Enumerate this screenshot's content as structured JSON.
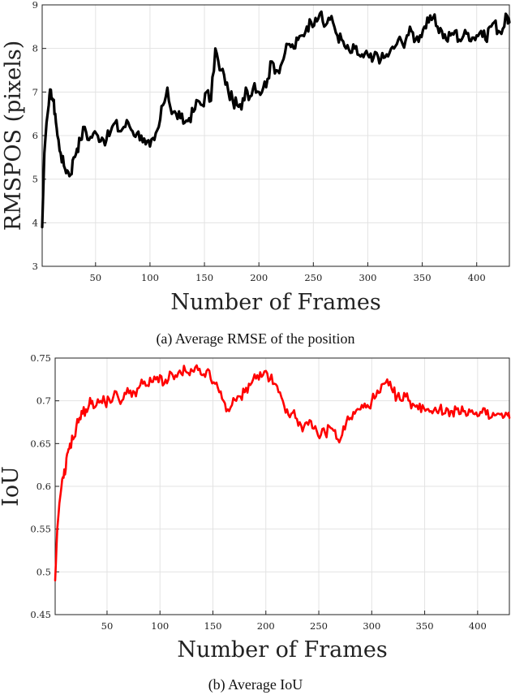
{
  "chart_data": [
    {
      "type": "line",
      "caption": "(a)  Average RMSE of the position",
      "xlabel": "Number of Frames",
      "ylabel": "RMSPOS (pixels)",
      "xlim": [
        1,
        430
      ],
      "ylim": [
        3,
        9
      ],
      "xticks": [
        50,
        100,
        150,
        200,
        250,
        300,
        350,
        400
      ],
      "yticks": [
        3,
        4,
        5,
        6,
        7,
        8,
        9
      ],
      "grid": true,
      "series": [
        {
          "color": "#000000",
          "x": [
            1,
            3,
            5,
            7,
            9,
            11,
            13,
            15,
            18,
            21,
            24,
            27,
            30,
            33,
            36,
            40,
            44,
            48,
            52,
            56,
            60,
            64,
            68,
            72,
            76,
            80,
            84,
            88,
            92,
            96,
            100,
            104,
            108,
            112,
            116,
            120,
            124,
            128,
            132,
            136,
            140,
            144,
            148,
            152,
            156,
            160,
            164,
            168,
            172,
            176,
            180,
            184,
            188,
            192,
            196,
            200,
            204,
            208,
            212,
            216,
            220,
            224,
            228,
            232,
            236,
            240,
            244,
            248,
            252,
            256,
            260,
            264,
            268,
            272,
            276,
            280,
            284,
            288,
            292,
            296,
            300,
            304,
            308,
            312,
            316,
            320,
            324,
            328,
            332,
            336,
            340,
            344,
            348,
            352,
            356,
            360,
            364,
            368,
            372,
            376,
            380,
            384,
            388,
            392,
            396,
            400,
            404,
            408,
            412,
            416,
            420,
            424,
            428,
            430
          ],
          "values": [
            3.9,
            5.6,
            6.3,
            6.7,
            7.05,
            6.8,
            6.5,
            6.0,
            5.6,
            5.3,
            5.2,
            5.1,
            5.5,
            5.7,
            5.9,
            6.2,
            5.9,
            6.05,
            6.0,
            5.95,
            5.9,
            6.1,
            6.3,
            6.1,
            6.2,
            6.3,
            6.1,
            6.05,
            6.0,
            5.8,
            5.75,
            5.9,
            6.2,
            6.7,
            7.1,
            6.5,
            6.5,
            6.4,
            6.3,
            6.4,
            6.55,
            6.8,
            6.7,
            7.0,
            6.8,
            8.0,
            7.5,
            7.4,
            7.0,
            6.8,
            6.7,
            6.6,
            7.1,
            6.9,
            7.2,
            7.0,
            7.1,
            7.3,
            7.7,
            7.5,
            7.6,
            7.9,
            8.1,
            8.0,
            8.2,
            8.3,
            8.5,
            8.6,
            8.7,
            8.8,
            8.5,
            8.7,
            8.6,
            8.3,
            8.2,
            8.0,
            7.9,
            8.0,
            7.85,
            7.8,
            7.85,
            7.7,
            7.9,
            7.75,
            7.8,
            7.9,
            8.0,
            8.2,
            8.1,
            8.3,
            8.4,
            8.2,
            8.3,
            8.5,
            8.6,
            8.7,
            8.5,
            8.4,
            8.2,
            8.3,
            8.4,
            8.2,
            8.3,
            8.35,
            8.25,
            8.3,
            8.4,
            8.2,
            8.5,
            8.6,
            8.4,
            8.45,
            8.75,
            8.6
          ]
        }
      ]
    },
    {
      "type": "line",
      "caption": "(b)  Average IoU",
      "xlabel": "Number of Frames",
      "ylabel": "IoU",
      "xlim": [
        1,
        430
      ],
      "ylim": [
        0.45,
        0.75
      ],
      "xticks": [
        50,
        100,
        150,
        200,
        250,
        300,
        350,
        400
      ],
      "yticks": [
        0.45,
        0.5,
        0.55,
        0.6,
        0.65,
        0.7,
        0.75
      ],
      "grid": true,
      "series": [
        {
          "color": "#ff0000",
          "x": [
            1,
            3,
            5,
            7,
            9,
            11,
            13,
            15,
            18,
            21,
            24,
            27,
            30,
            33,
            36,
            40,
            44,
            48,
            52,
            56,
            60,
            64,
            68,
            72,
            76,
            80,
            84,
            88,
            92,
            96,
            100,
            104,
            108,
            112,
            116,
            120,
            124,
            128,
            132,
            136,
            140,
            144,
            148,
            152,
            156,
            160,
            164,
            168,
            172,
            176,
            180,
            184,
            188,
            192,
            196,
            200,
            204,
            208,
            212,
            216,
            220,
            224,
            228,
            232,
            236,
            240,
            244,
            248,
            252,
            256,
            260,
            264,
            268,
            272,
            276,
            280,
            284,
            288,
            292,
            296,
            300,
            304,
            308,
            312,
            316,
            320,
            324,
            328,
            332,
            336,
            340,
            344,
            348,
            352,
            356,
            360,
            364,
            368,
            372,
            376,
            380,
            384,
            388,
            392,
            396,
            400,
            404,
            408,
            412,
            416,
            420,
            424,
            428,
            430
          ],
          "values": [
            0.49,
            0.55,
            0.58,
            0.6,
            0.61,
            0.62,
            0.64,
            0.65,
            0.655,
            0.67,
            0.68,
            0.685,
            0.69,
            0.695,
            0.7,
            0.695,
            0.7,
            0.698,
            0.702,
            0.705,
            0.706,
            0.7,
            0.708,
            0.712,
            0.71,
            0.715,
            0.72,
            0.718,
            0.722,
            0.725,
            0.73,
            0.72,
            0.725,
            0.73,
            0.728,
            0.732,
            0.735,
            0.73,
            0.734,
            0.736,
            0.73,
            0.735,
            0.725,
            0.72,
            0.71,
            0.7,
            0.69,
            0.695,
            0.7,
            0.705,
            0.71,
            0.72,
            0.725,
            0.73,
            0.728,
            0.735,
            0.725,
            0.72,
            0.71,
            0.7,
            0.69,
            0.685,
            0.68,
            0.675,
            0.67,
            0.672,
            0.668,
            0.665,
            0.66,
            0.662,
            0.67,
            0.665,
            0.655,
            0.66,
            0.675,
            0.68,
            0.685,
            0.69,
            0.692,
            0.695,
            0.7,
            0.705,
            0.71,
            0.72,
            0.718,
            0.71,
            0.705,
            0.7,
            0.705,
            0.7,
            0.695,
            0.69,
            0.695,
            0.69,
            0.688,
            0.692,
            0.69,
            0.685,
            0.69,
            0.688,
            0.69,
            0.685,
            0.688,
            0.69,
            0.685,
            0.682,
            0.686,
            0.684,
            0.68,
            0.683,
            0.685,
            0.68,
            0.684,
            0.68
          ]
        }
      ]
    }
  ]
}
